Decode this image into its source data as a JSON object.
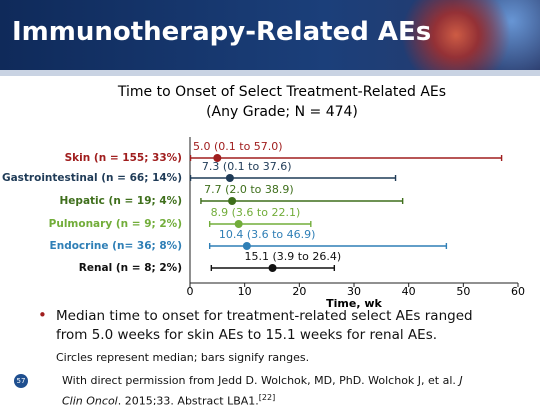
{
  "slide": {
    "title": "Immunotherapy-Related AEs",
    "number": "57",
    "bullet": "Median time to onset for treatment-related select AEs ranged from 5.0 weeks for skin AEs to 15.1 weeks for renal AEs.",
    "note": "Circles represent median; bars signify ranges.",
    "citation": {
      "text": "With direct permission from Jedd D. Wolchok, MD, PhD. Wolchok J, et al. ",
      "journal": "J Clin Oncol",
      "rest": ". 2015;33. Abstract LBA1.",
      "ref": "[22]"
    }
  },
  "chart_data": {
    "type": "range",
    "title": "Time to Onset of Select Treatment-Related AEs",
    "subtitle": "(Any Grade; N = 474)",
    "categories": [
      "Skin (n = 155; 33%)",
      "Gastrointestinal (n = 66; 14%)",
      "Hepatic (n = 19; 4%)",
      "Pulmonary (n = 9; 2%)",
      "Endocrine (n= 36; 8%)",
      "Renal (n = 8; 2%)"
    ],
    "colors": [
      "#a01e1e",
      "#1f3b57",
      "#3f6f1c",
      "#72ad3a",
      "#2f7fb6",
      "#111111"
    ],
    "medians": [
      5.0,
      7.3,
      7.7,
      8.9,
      10.4,
      15.1
    ],
    "lows": [
      0.1,
      0.1,
      2.0,
      3.6,
      3.6,
      3.9
    ],
    "highs": [
      57.0,
      37.6,
      38.9,
      22.1,
      46.9,
      26.4
    ],
    "value_labels": [
      "5.0 (0.1 to 57.0)",
      "7.3 (0.1 to 37.6)",
      "7.7 (2.0 to 38.9)",
      "8.9 (3.6 to 22.1)",
      "10.4 (3.6 to 46.9)",
      "15.1 (3.9 to 26.4)"
    ],
    "xlabel": "Time, wk",
    "xlim": [
      0,
      60
    ],
    "xticks": [
      0,
      10,
      20,
      30,
      40,
      50,
      60
    ]
  }
}
